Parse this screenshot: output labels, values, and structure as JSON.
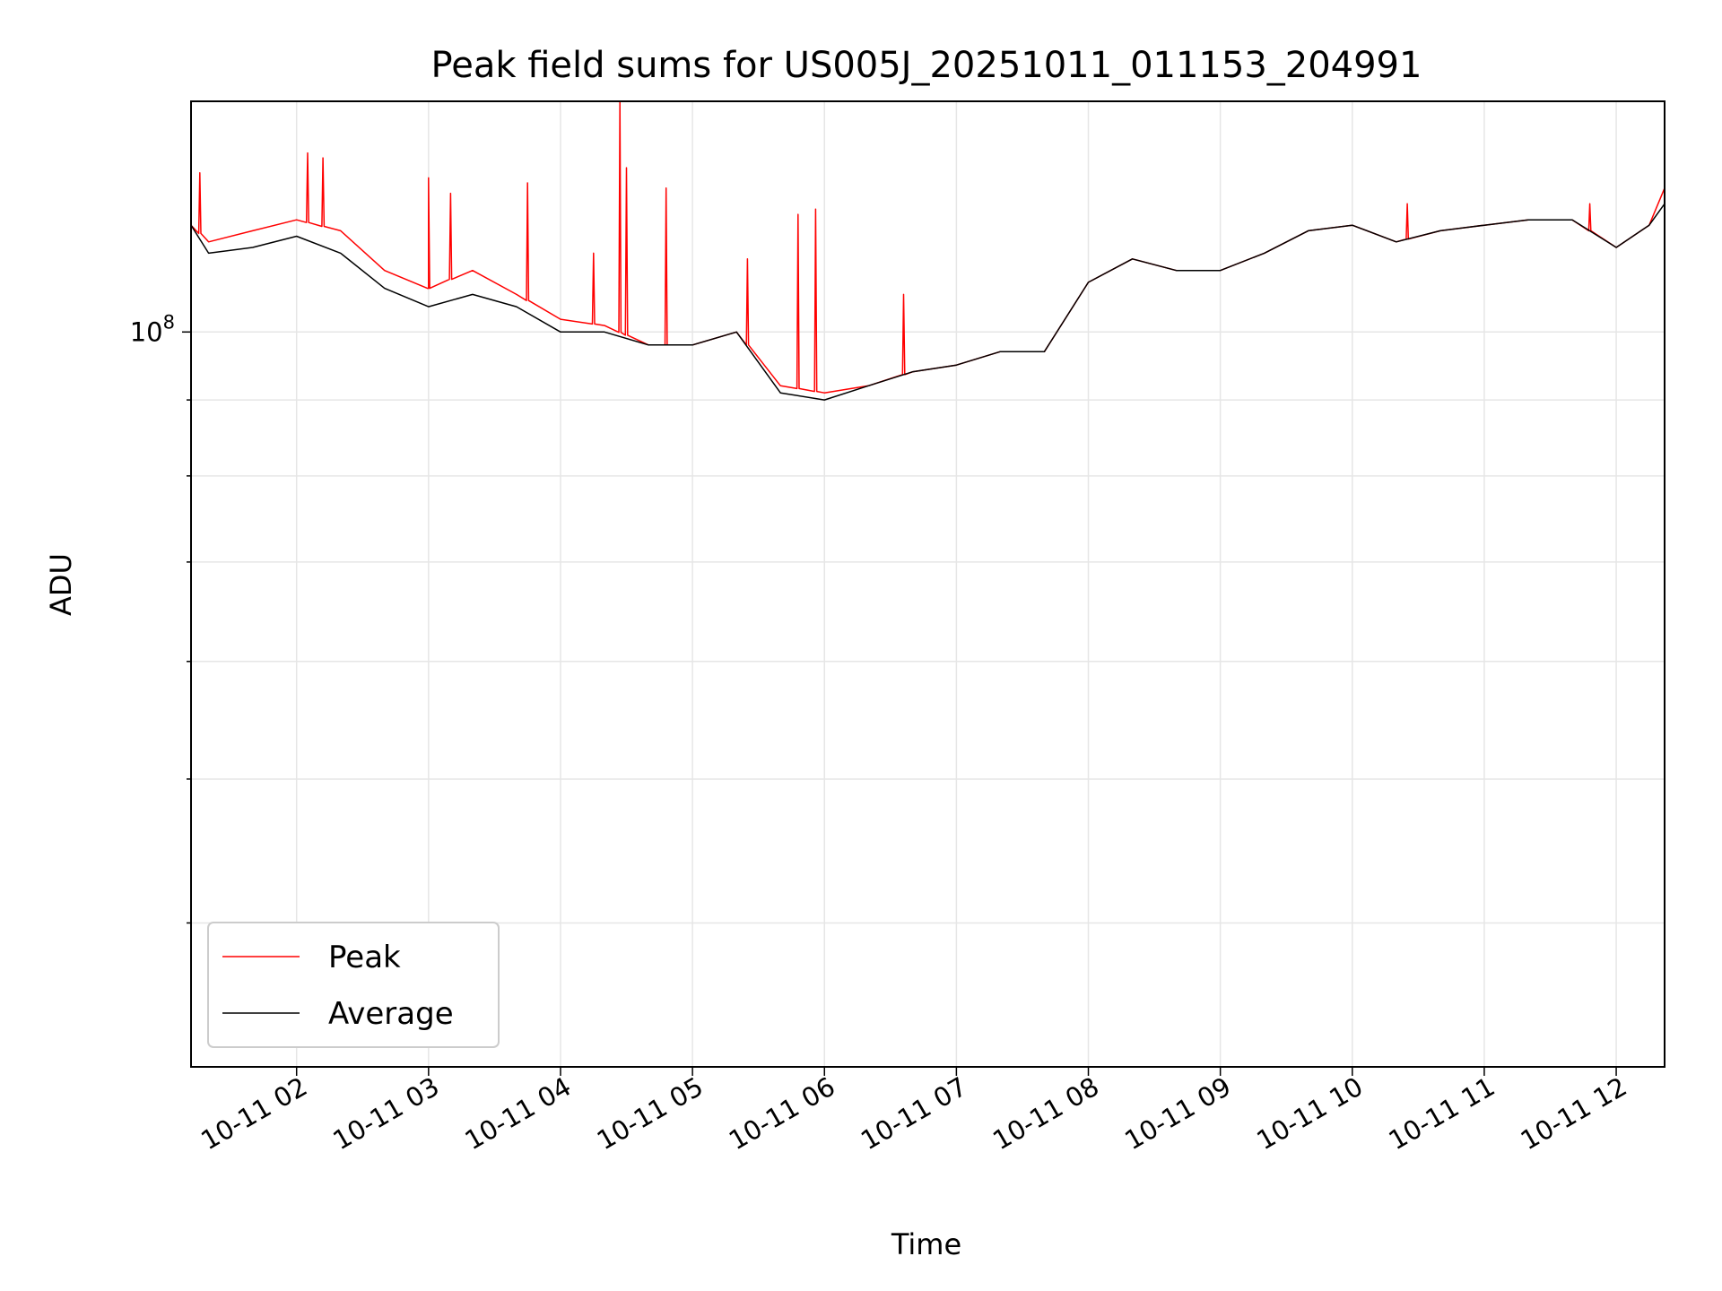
{
  "chart_data": {
    "type": "line",
    "title": "Peak field sums for US005J_20251011_011153_204991",
    "xlabel": "Time",
    "ylabel": "ADU",
    "x_ticks": [
      "10-11 02",
      "10-11 03",
      "10-11 04",
      "10-11 05",
      "10-11 06",
      "10-11 07",
      "10-11 08",
      "10-11 09",
      "10-11 10",
      "10-11 11",
      "10-11 12"
    ],
    "y_ticks": [
      {
        "base": "10",
        "exp": "8",
        "value": 100000000
      }
    ],
    "x_range": [
      "10-11 01:12",
      "10-11 12:22"
    ],
    "y_range": [
      32000000,
      143000000
    ],
    "y_scale": "log",
    "grid": true,
    "legend": {
      "position": "lower-left"
    },
    "series": [
      {
        "name": "Peak",
        "color": "#ff0000",
        "x": [
          "10-11 01:12",
          "10-11 01:20",
          "10-11 01:40",
          "10-11 02:00",
          "10-11 02:20",
          "10-11 02:40",
          "10-11 03:00",
          "10-11 03:20",
          "10-11 03:40",
          "10-11 04:00",
          "10-11 04:20",
          "10-11 04:40",
          "10-11 05:00",
          "10-11 05:20",
          "10-11 05:40",
          "10-11 06:00",
          "10-11 06:20",
          "10-11 06:40",
          "10-11 07:00",
          "10-11 07:20",
          "10-11 07:40",
          "10-11 08:00",
          "10-11 08:20",
          "10-11 08:40",
          "10-11 09:00",
          "10-11 09:20",
          "10-11 09:40",
          "10-11 10:00",
          "10-11 10:20",
          "10-11 10:40",
          "10-11 11:00",
          "10-11 11:20",
          "10-11 11:40",
          "10-11 12:00",
          "10-11 12:15",
          "10-11 12:22"
        ],
        "values": [
          118000000,
          115000000,
          117000000,
          119000000,
          117000000,
          110000000,
          107000000,
          110000000,
          106000000,
          102000000,
          101000000,
          98000000,
          98000000,
          100000000,
          92000000,
          91000000,
          92000000,
          94000000,
          95000000,
          97000000,
          97000000,
          108000000,
          112000000,
          110000000,
          110000000,
          113000000,
          117000000,
          118000000,
          115000000,
          117000000,
          118000000,
          119000000,
          119000000,
          114000000,
          118000000,
          125000000
        ],
        "spikes": [
          {
            "x": "10-11 01:16",
            "value": 128000000
          },
          {
            "x": "10-11 02:05",
            "value": 132000000
          },
          {
            "x": "10-11 02:12",
            "value": 131000000
          },
          {
            "x": "10-11 03:00",
            "value": 127000000
          },
          {
            "x": "10-11 03:10",
            "value": 124000000
          },
          {
            "x": "10-11 03:45",
            "value": 126000000
          },
          {
            "x": "10-11 04:15",
            "value": 113000000
          },
          {
            "x": "10-11 04:27",
            "value": 143000000
          },
          {
            "x": "10-11 04:30",
            "value": 129000000
          },
          {
            "x": "10-11 04:48",
            "value": 125000000
          },
          {
            "x": "10-11 05:25",
            "value": 112000000
          },
          {
            "x": "10-11 05:48",
            "value": 120000000
          },
          {
            "x": "10-11 05:56",
            "value": 121000000
          },
          {
            "x": "10-11 06:36",
            "value": 106000000
          },
          {
            "x": "10-11 10:25",
            "value": 122000000
          },
          {
            "x": "10-11 11:48",
            "value": 122000000
          }
        ]
      },
      {
        "name": "Average",
        "color": "#000000",
        "x": [
          "10-11 01:12",
          "10-11 01:20",
          "10-11 01:40",
          "10-11 02:00",
          "10-11 02:20",
          "10-11 02:40",
          "10-11 03:00",
          "10-11 03:20",
          "10-11 03:40",
          "10-11 04:00",
          "10-11 04:20",
          "10-11 04:40",
          "10-11 05:00",
          "10-11 05:20",
          "10-11 05:40",
          "10-11 06:00",
          "10-11 06:20",
          "10-11 06:40",
          "10-11 07:00",
          "10-11 07:20",
          "10-11 07:40",
          "10-11 08:00",
          "10-11 08:20",
          "10-11 08:40",
          "10-11 09:00",
          "10-11 09:20",
          "10-11 09:40",
          "10-11 10:00",
          "10-11 10:20",
          "10-11 10:40",
          "10-11 11:00",
          "10-11 11:20",
          "10-11 11:40",
          "10-11 12:00",
          "10-11 12:15",
          "10-11 12:22"
        ],
        "values": [
          118000000,
          113000000,
          114000000,
          116000000,
          113000000,
          107000000,
          104000000,
          106000000,
          104000000,
          100000000,
          100000000,
          98000000,
          98000000,
          100000000,
          91000000,
          90000000,
          92000000,
          94000000,
          95000000,
          97000000,
          97000000,
          108000000,
          112000000,
          110000000,
          110000000,
          113000000,
          117000000,
          118000000,
          115000000,
          117000000,
          118000000,
          119000000,
          119000000,
          114000000,
          118000000,
          122000000
        ]
      }
    ]
  }
}
